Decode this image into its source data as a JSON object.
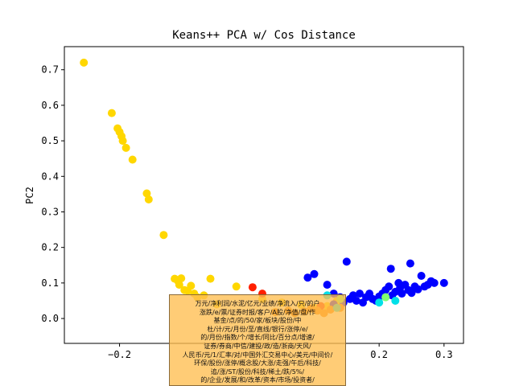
{
  "chart_data": {
    "type": "scatter",
    "title": "Keans++ PCA w/ Cos Distance",
    "xlabel": "",
    "ylabel": "PC2",
    "xlim": [
      -0.285,
      0.33
    ],
    "ylim": [
      -0.07,
      0.765
    ],
    "x_ticks": [
      -0.2,
      0.2,
      0.3
    ],
    "x_tick_labels": [
      "−0.2",
      "0.2",
      "0.3"
    ],
    "y_ticks": [
      0.0,
      0.1,
      0.2,
      0.3,
      0.4,
      0.5,
      0.6,
      0.7
    ],
    "y_tick_labels": [
      "0.0",
      "0.1",
      "0.2",
      "0.3",
      "0.4",
      "0.5",
      "0.6",
      "0.7"
    ],
    "grid": false,
    "legend": "none",
    "series": [
      {
        "color": "#ffd700",
        "points": [
          [
            -0.255,
            0.72
          ],
          [
            -0.212,
            0.578
          ],
          [
            -0.203,
            0.535
          ],
          [
            -0.2,
            0.525
          ],
          [
            -0.197,
            0.513
          ],
          [
            -0.195,
            0.5
          ],
          [
            -0.19,
            0.48
          ],
          [
            -0.18,
            0.447
          ],
          [
            -0.158,
            0.352
          ],
          [
            -0.155,
            0.335
          ],
          [
            -0.132,
            0.235
          ],
          [
            -0.115,
            0.112
          ],
          [
            -0.11,
            0.106
          ],
          [
            -0.108,
            0.095
          ],
          [
            -0.105,
            0.113
          ],
          [
            -0.1,
            0.08
          ],
          [
            -0.095,
            0.078
          ],
          [
            -0.09,
            0.092
          ],
          [
            -0.085,
            0.07
          ],
          [
            -0.08,
            0.06
          ],
          [
            -0.07,
            0.065
          ],
          [
            -0.06,
            0.112
          ],
          [
            -0.05,
            0.04
          ],
          [
            -0.02,
            0.09
          ],
          [
            0.02,
            0.055
          ],
          [
            0.05,
            0.045
          ],
          [
            0.08,
            0.038
          ],
          [
            0.1,
            0.03
          ],
          [
            0.12,
            0.035
          ],
          [
            0.135,
            0.05
          ]
        ]
      },
      {
        "color": "#0000ff",
        "points": [
          [
            0.09,
            0.115
          ],
          [
            0.1,
            0.125
          ],
          [
            0.12,
            0.095
          ],
          [
            0.15,
            0.16
          ],
          [
            0.13,
            0.07
          ],
          [
            0.14,
            0.06
          ],
          [
            0.155,
            0.055
          ],
          [
            0.16,
            0.065
          ],
          [
            0.165,
            0.05
          ],
          [
            0.17,
            0.07
          ],
          [
            0.175,
            0.045
          ],
          [
            0.18,
            0.06
          ],
          [
            0.19,
            0.055
          ],
          [
            0.2,
            0.062
          ],
          [
            0.205,
            0.07
          ],
          [
            0.21,
            0.08
          ],
          [
            0.215,
            0.09
          ],
          [
            0.218,
            0.14
          ],
          [
            0.22,
            0.065
          ],
          [
            0.225,
            0.075
          ],
          [
            0.23,
            0.1
          ],
          [
            0.232,
            0.085
          ],
          [
            0.235,
            0.07
          ],
          [
            0.24,
            0.095
          ],
          [
            0.245,
            0.08
          ],
          [
            0.248,
            0.155
          ],
          [
            0.25,
            0.072
          ],
          [
            0.255,
            0.09
          ],
          [
            0.26,
            0.082
          ],
          [
            0.265,
            0.12
          ],
          [
            0.27,
            0.09
          ],
          [
            0.275,
            0.095
          ],
          [
            0.28,
            0.105
          ],
          [
            0.285,
            0.1
          ],
          [
            0.3,
            0.1
          ],
          [
            0.13,
            0.04
          ],
          [
            0.145,
            0.045
          ],
          [
            0.185,
            0.07
          ],
          [
            0.195,
            0.05
          ]
        ]
      },
      {
        "color": "#ff2000",
        "points": [
          [
            0.005,
            0.088
          ],
          [
            0.02,
            0.07
          ],
          [
            0.11,
            0.035
          ]
        ]
      },
      {
        "color": "#ff7f00",
        "points": [
          [
            0.04,
            0.018
          ],
          [
            0.06,
            0.022
          ],
          [
            0.07,
            0.015
          ],
          [
            0.085,
            0.02
          ],
          [
            0.095,
            0.028
          ],
          [
            0.105,
            0.022
          ],
          [
            0.115,
            0.015
          ],
          [
            0.125,
            0.025
          ],
          [
            0.14,
            0.03
          ]
        ]
      },
      {
        "color": "#00e0e8",
        "points": [
          [
            0.12,
            0.065
          ],
          [
            0.135,
            0.03
          ],
          [
            0.21,
            0.06
          ],
          [
            0.225,
            0.05
          ],
          [
            0.2,
            0.045
          ]
        ]
      },
      {
        "color": "#80ff70",
        "points": [
          [
            0.21,
            0.06
          ],
          [
            0.14,
            0.055
          ]
        ]
      }
    ],
    "annotation": {
      "lines": [
        "万元/净利润/水泥/亿元/业绩/净流入/只/的户",
        "涨跌/e/票/证券时报/客户/A股/净值/盘/作",
        "基金/点/的/50/家/板块/股份/中",
        "杜/计/元/月份/至/直线/银行/涨停/e/",
        "的/月份/指数/个/增长/同比/百分点/增速/",
        "证券/券商/中信/建投/政/造/浙商/天风/",
        "人民币/元/1/汇率/对/中国外汇交易中心/美元/中间价/",
        "环保/股份/涨停/概念股/大涨/走强/午后/科技/",
        "追/涨/ST/股份/科技/稀土/跌/5%/",
        "的/企业/发展/和/改革/资本/市场/投资者/"
      ]
    }
  }
}
